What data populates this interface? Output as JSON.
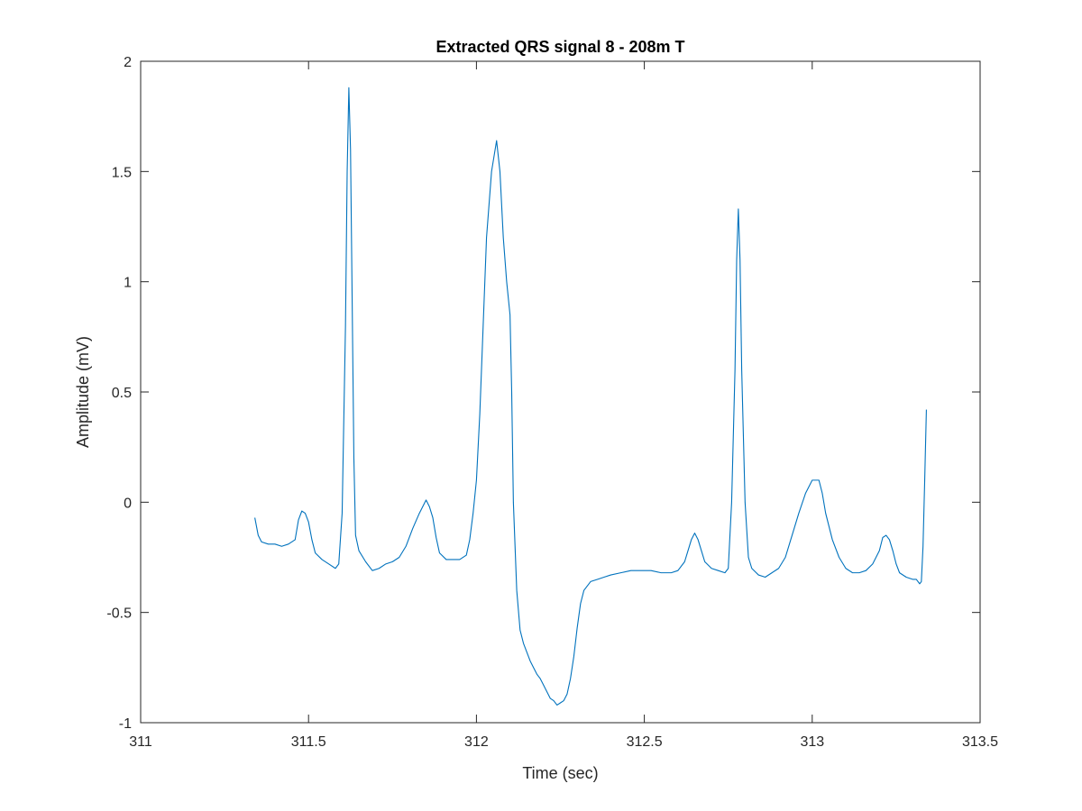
{
  "chart_data": {
    "type": "line",
    "title": "Extracted QRS signal 8 - 208m T",
    "xlabel": "Time (sec)",
    "ylabel": "Amplitude (mV)",
    "xlim": [
      311,
      313.5
    ],
    "ylim": [
      -1,
      2
    ],
    "xticks": [
      311,
      311.5,
      312,
      312.5,
      313,
      313.5
    ],
    "xtick_labels": [
      "311",
      "311.5",
      "312",
      "312.5",
      "313",
      "313.5"
    ],
    "yticks": [
      -1,
      -0.5,
      0,
      0.5,
      1,
      1.5,
      2
    ],
    "ytick_labels": [
      "-1",
      "-0.5",
      "0",
      "0.5",
      "1",
      "1.5",
      "2"
    ],
    "grid": false,
    "box": true,
    "series": [
      {
        "color": "#0072BD",
        "points": [
          [
            311.34,
            -0.07
          ],
          [
            311.35,
            -0.15
          ],
          [
            311.36,
            -0.18
          ],
          [
            311.38,
            -0.19
          ],
          [
            311.4,
            -0.19
          ],
          [
            311.42,
            -0.2
          ],
          [
            311.44,
            -0.19
          ],
          [
            311.46,
            -0.17
          ],
          [
            311.47,
            -0.08
          ],
          [
            311.48,
            -0.04
          ],
          [
            311.49,
            -0.05
          ],
          [
            311.5,
            -0.09
          ],
          [
            311.51,
            -0.17
          ],
          [
            311.52,
            -0.23
          ],
          [
            311.54,
            -0.26
          ],
          [
            311.56,
            -0.28
          ],
          [
            311.58,
            -0.3
          ],
          [
            311.59,
            -0.28
          ],
          [
            311.6,
            -0.05
          ],
          [
            311.61,
            0.8
          ],
          [
            311.615,
            1.5
          ],
          [
            311.62,
            1.88
          ],
          [
            311.625,
            1.6
          ],
          [
            311.63,
            0.9
          ],
          [
            311.635,
            0.2
          ],
          [
            311.64,
            -0.15
          ],
          [
            311.65,
            -0.22
          ],
          [
            311.67,
            -0.27
          ],
          [
            311.69,
            -0.31
          ],
          [
            311.71,
            -0.3
          ],
          [
            311.73,
            -0.28
          ],
          [
            311.75,
            -0.27
          ],
          [
            311.77,
            -0.25
          ],
          [
            311.79,
            -0.2
          ],
          [
            311.81,
            -0.12
          ],
          [
            311.83,
            -0.05
          ],
          [
            311.84,
            -0.02
          ],
          [
            311.85,
            0.01
          ],
          [
            311.86,
            -0.02
          ],
          [
            311.87,
            -0.07
          ],
          [
            311.88,
            -0.16
          ],
          [
            311.89,
            -0.23
          ],
          [
            311.91,
            -0.26
          ],
          [
            311.93,
            -0.26
          ],
          [
            311.95,
            -0.26
          ],
          [
            311.97,
            -0.24
          ],
          [
            311.98,
            -0.17
          ],
          [
            311.99,
            -0.05
          ],
          [
            312.0,
            0.1
          ],
          [
            312.01,
            0.4
          ],
          [
            312.02,
            0.8
          ],
          [
            312.03,
            1.2
          ],
          [
            312.045,
            1.5
          ],
          [
            312.06,
            1.64
          ],
          [
            312.07,
            1.5
          ],
          [
            312.08,
            1.2
          ],
          [
            312.09,
            1.0
          ],
          [
            312.1,
            0.85
          ],
          [
            312.105,
            0.5
          ],
          [
            312.11,
            0.0
          ],
          [
            312.12,
            -0.4
          ],
          [
            312.13,
            -0.58
          ],
          [
            312.14,
            -0.64
          ],
          [
            312.15,
            -0.68
          ],
          [
            312.16,
            -0.72
          ],
          [
            312.17,
            -0.75
          ],
          [
            312.18,
            -0.78
          ],
          [
            312.19,
            -0.8
          ],
          [
            312.2,
            -0.83
          ],
          [
            312.21,
            -0.86
          ],
          [
            312.22,
            -0.89
          ],
          [
            312.23,
            -0.9
          ],
          [
            312.24,
            -0.92
          ],
          [
            312.25,
            -0.91
          ],
          [
            312.26,
            -0.9
          ],
          [
            312.27,
            -0.87
          ],
          [
            312.28,
            -0.8
          ],
          [
            312.29,
            -0.7
          ],
          [
            312.3,
            -0.57
          ],
          [
            312.31,
            -0.46
          ],
          [
            312.32,
            -0.4
          ],
          [
            312.34,
            -0.36
          ],
          [
            312.36,
            -0.35
          ],
          [
            312.38,
            -0.34
          ],
          [
            312.4,
            -0.33
          ],
          [
            312.43,
            -0.32
          ],
          [
            312.46,
            -0.31
          ],
          [
            312.49,
            -0.31
          ],
          [
            312.52,
            -0.31
          ],
          [
            312.55,
            -0.32
          ],
          [
            312.58,
            -0.32
          ],
          [
            312.6,
            -0.31
          ],
          [
            312.62,
            -0.27
          ],
          [
            312.63,
            -0.22
          ],
          [
            312.64,
            -0.17
          ],
          [
            312.65,
            -0.14
          ],
          [
            312.66,
            -0.17
          ],
          [
            312.67,
            -0.22
          ],
          [
            312.68,
            -0.27
          ],
          [
            312.7,
            -0.3
          ],
          [
            312.72,
            -0.31
          ],
          [
            312.74,
            -0.32
          ],
          [
            312.75,
            -0.3
          ],
          [
            312.76,
            0.0
          ],
          [
            312.77,
            0.6
          ],
          [
            312.775,
            1.1
          ],
          [
            312.78,
            1.33
          ],
          [
            312.785,
            1.1
          ],
          [
            312.79,
            0.6
          ],
          [
            312.8,
            0.0
          ],
          [
            312.81,
            -0.25
          ],
          [
            312.82,
            -0.3
          ],
          [
            312.84,
            -0.33
          ],
          [
            312.86,
            -0.34
          ],
          [
            312.88,
            -0.32
          ],
          [
            312.9,
            -0.3
          ],
          [
            312.92,
            -0.25
          ],
          [
            312.94,
            -0.15
          ],
          [
            312.96,
            -0.05
          ],
          [
            312.98,
            0.04
          ],
          [
            313.0,
            0.1
          ],
          [
            313.02,
            0.1
          ],
          [
            313.03,
            0.04
          ],
          [
            313.04,
            -0.05
          ],
          [
            313.06,
            -0.17
          ],
          [
            313.08,
            -0.25
          ],
          [
            313.1,
            -0.3
          ],
          [
            313.12,
            -0.32
          ],
          [
            313.14,
            -0.32
          ],
          [
            313.16,
            -0.31
          ],
          [
            313.18,
            -0.28
          ],
          [
            313.2,
            -0.22
          ],
          [
            313.21,
            -0.16
          ],
          [
            313.22,
            -0.15
          ],
          [
            313.23,
            -0.17
          ],
          [
            313.24,
            -0.22
          ],
          [
            313.25,
            -0.28
          ],
          [
            313.26,
            -0.32
          ],
          [
            313.28,
            -0.34
          ],
          [
            313.3,
            -0.35
          ],
          [
            313.31,
            -0.35
          ],
          [
            313.32,
            -0.37
          ],
          [
            313.325,
            -0.36
          ],
          [
            313.33,
            -0.2
          ],
          [
            313.335,
            0.1
          ],
          [
            313.34,
            0.42
          ]
        ]
      }
    ]
  }
}
